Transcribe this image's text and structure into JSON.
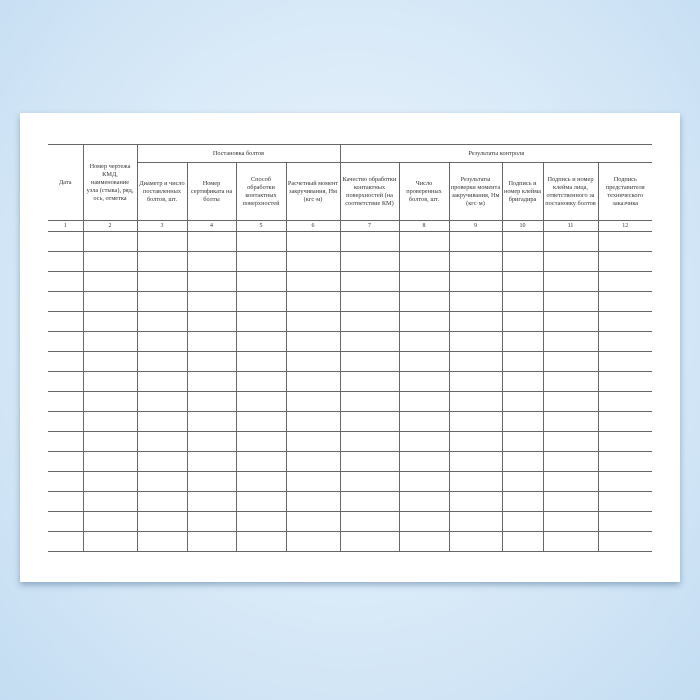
{
  "form": {
    "group_headers": {
      "installation": "Постановка болтов",
      "control": "Результаты контроля"
    },
    "columns": [
      "Дата",
      "Номер чертежа КМД, наименование узла (стыка), ряд, ось, отметка",
      "Диаметр и число поставленных болтов, шт.",
      "Номер сертификата на болты",
      "Способ обработки контактных поверхностей",
      "Расчетный момент закручивания, Нм (кгс·м)",
      "Качество обработки контактных поверхностей (на соответствие КМ)",
      "Число проверенных болтов, шт.",
      "Результаты проверки момента закручивания, Нм (кгс·м)",
      "Подпись и номер клейма бригадира",
      "Подпись и номер клейма лица, ответственного за постановку болтов",
      "Подпись представителя технического заказчика"
    ],
    "column_numbers": [
      "1",
      "2",
      "3",
      "4",
      "5",
      "6",
      "7",
      "8",
      "9",
      "10",
      "11",
      "12"
    ],
    "empty_rows": 16
  },
  "colors": {
    "background": "#d6e8f7",
    "paper": "#ffffff",
    "lines": "#666666"
  }
}
